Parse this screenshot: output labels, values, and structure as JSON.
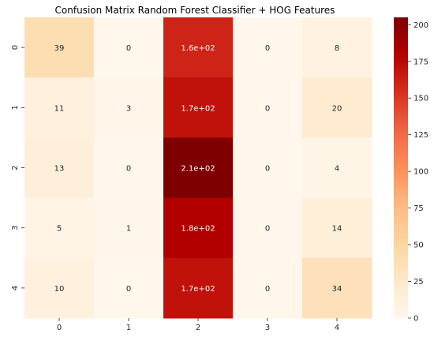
{
  "chart_data": {
    "type": "heatmap",
    "title": "Confusion Matrix Random Forest Classifier + HOG Features",
    "xlabel": "",
    "ylabel": "",
    "x_categories": [
      "0",
      "1",
      "2",
      "3",
      "4"
    ],
    "y_categories": [
      "0",
      "1",
      "2",
      "3",
      "4"
    ],
    "values": [
      [
        39,
        0,
        160,
        0,
        8
      ],
      [
        11,
        3,
        170,
        0,
        20
      ],
      [
        13,
        0,
        210,
        0,
        4
      ],
      [
        5,
        1,
        180,
        0,
        14
      ],
      [
        10,
        0,
        170,
        0,
        34
      ]
    ],
    "annotations": [
      [
        "39",
        "0",
        "1.6e+02",
        "0",
        "8"
      ],
      [
        "11",
        "3",
        "1.7e+02",
        "0",
        "20"
      ],
      [
        "13",
        "0",
        "2.1e+02",
        "0",
        "4"
      ],
      [
        "5",
        "1",
        "1.8e+02",
        "0",
        "14"
      ],
      [
        "10",
        "0",
        "1.7e+02",
        "0",
        "34"
      ]
    ],
    "colormap": "OrRd",
    "colorbar": {
      "range": [
        0,
        205
      ],
      "ticks": [
        0,
        25,
        50,
        75,
        100,
        125,
        150,
        175,
        200
      ],
      "tick_labels": [
        "0",
        "25",
        "50",
        "75",
        "100",
        "125",
        "150",
        "175",
        "200"
      ]
    }
  },
  "colors": {
    "low": "#fff7ec",
    "high": "#7f0000",
    "text_dark": "#262626",
    "text_light": "#ffffff"
  }
}
